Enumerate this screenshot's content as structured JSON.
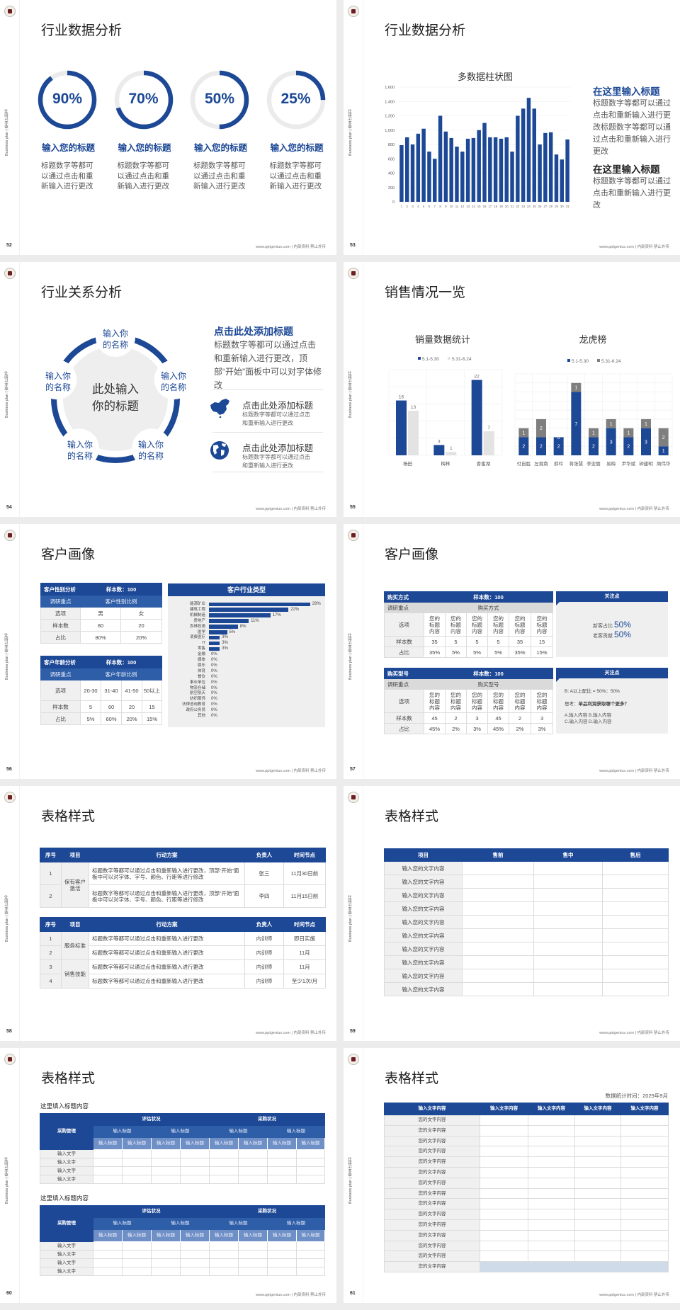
{
  "common": {
    "sidebar": "Business plan | 商业计划书",
    "footer": "www.pptgenius.com | 内部资料 禁止外传"
  },
  "colors": {
    "primary": "#1c4896",
    "secondary": "#2f5ea8",
    "light_gray": "#ebebeb",
    "gray_series": "#7f7f7f",
    "light_series": "#e3e3e3"
  },
  "chart_data": [
    {
      "type": "bar",
      "title": "多数据柱状图",
      "categories": [
        "1",
        "2",
        "3",
        "4",
        "5",
        "6",
        "7",
        "8",
        "9",
        "10",
        "11",
        "12",
        "13",
        "14",
        "15",
        "16",
        "17",
        "18",
        "19",
        "20",
        "21",
        "22",
        "23",
        "24",
        "25",
        "26",
        "27",
        "28",
        "29",
        "30",
        "31"
      ],
      "values": [
        790,
        900,
        800,
        950,
        1020,
        700,
        600,
        1200,
        980,
        890,
        770,
        700,
        880,
        890,
        1000,
        1100,
        900,
        900,
        880,
        900,
        700,
        1200,
        1300,
        1450,
        1300,
        800,
        960,
        970,
        660,
        590,
        870
      ],
      "ylim": [
        0,
        1600
      ],
      "yticks": [
        "0",
        "200",
        "400",
        "600",
        "800",
        "1,000",
        "1,200",
        "1,400",
        "1,600"
      ],
      "grid": true
    },
    {
      "type": "bar",
      "title": "销量数据统计",
      "categories": [
        "杨田",
        "梅林",
        "香蜜湖"
      ],
      "series": [
        {
          "name": "5.1-5.30",
          "values": [
            16,
            3,
            22
          ]
        },
        {
          "name": "5.31-6.24",
          "values": [
            13,
            1,
            7
          ]
        }
      ],
      "ylim": [
        0,
        25
      ],
      "legend": "top",
      "grid": true
    },
    {
      "type": "bar",
      "stacked": true,
      "title": "龙虎榜",
      "categories": [
        "付自胜",
        "左湘南",
        "薛玲",
        "蒋张慧",
        "李亚丽",
        "易梅",
        "尹华斌",
        "钟建明",
        "周伟华"
      ],
      "series": [
        {
          "name": "5.1-5.30",
          "values": [
            2,
            2,
            2,
            7,
            2,
            3,
            2,
            3,
            1
          ]
        },
        {
          "name": "5.31-6.24",
          "values": [
            1,
            2,
            0,
            1,
            1,
            1,
            1,
            1,
            2
          ]
        }
      ],
      "ylim": [
        0,
        9
      ],
      "legend": "top",
      "grid": true
    },
    {
      "type": "bar",
      "orientation": "horizontal",
      "title": "客户行业类型",
      "categories": [
        "能源矿业",
        "建筑工程",
        "机械制造",
        "房地产",
        "农林牧渔",
        "医学",
        "消费医疗",
        "IT",
        "零售",
        "金融",
        "媒体",
        "娱乐",
        "体育",
        "餐饮",
        "事业单位",
        "物流仓储",
        "航空航天",
        "纺织服饰",
        "法律咨询教育",
        "政府公务员",
        "其他"
      ],
      "values": [
        28,
        22,
        17,
        11,
        8,
        5,
        3,
        3,
        3,
        0,
        0,
        0,
        0,
        0,
        0,
        0,
        0,
        0,
        0,
        0,
        0
      ],
      "unit": "%"
    }
  ],
  "s52": {
    "page": "52",
    "title": "行业数据分析",
    "items": [
      {
        "value": "90%",
        "percent": 90,
        "label": "输入您的标题",
        "desc": "标题数字等都可以通过点击和重新输入进行更改"
      },
      {
        "value": "70%",
        "percent": 70,
        "label": "输入您的标题",
        "desc": "标题数字等都可以通过点击和重新输入进行更改"
      },
      {
        "value": "50%",
        "percent": 50,
        "label": "输入您的标题",
        "desc": "标题数字等都可以通过点击和重新输入进行更改"
      },
      {
        "value": "25%",
        "percent": 25,
        "label": "输入您的标题",
        "desc": "标题数字等都可以通过点击和重新输入进行更改"
      }
    ]
  },
  "s53": {
    "page": "53",
    "title": "行业数据分析",
    "blocks": [
      {
        "heading": "在这里输入标题",
        "text": "标题数字等都可以通过点击和重新输入进行更改标题数字等都可以通过点击和重新输入进行更改"
      },
      {
        "heading": "在这里输入标题",
        "text": "标题数字等都可以通过点击和重新输入进行更改"
      }
    ]
  },
  "s54": {
    "page": "54",
    "title": "行业关系分析",
    "center": "此处输入你的标题",
    "nodes": [
      "输入你的名称",
      "输入你的名称",
      "输入你的名称",
      "输入你的名称",
      "输入你的名称"
    ],
    "heading": "点击此处添加标题",
    "paragraph": "标题数字等都可以通过点击和重新输入进行更改，顶部“开始”面板中可以对字体修改",
    "items": [
      {
        "icon": "china-map-icon",
        "title": "点击此处添加标题",
        "desc": "标题数字等都可以通过点击和重新输入进行更改"
      },
      {
        "icon": "globe-icon",
        "title": "点击此处添加标题",
        "desc": "标题数字等都可以通过点击和重新输入进行更改"
      }
    ]
  },
  "s55": {
    "page": "55",
    "title": "销售情况一览"
  },
  "s56": {
    "page": "56",
    "title": "客户画像",
    "gender": {
      "title": "客户性别分析",
      "sample": "样本数：100",
      "focus_label": "调研重点",
      "focus": "客户性别比例",
      "rows": [
        [
          "选项",
          "男",
          "女"
        ],
        [
          "样本数",
          "80",
          "20"
        ],
        [
          "占比",
          "80%",
          "20%"
        ]
      ]
    },
    "age": {
      "title": "客户年龄分析",
      "sample": "样本数：100",
      "focus_label": "调研重点",
      "focus": "客户年龄比例",
      "rows": [
        [
          "选项",
          "20-30",
          "31-40",
          "41-50",
          "50以上"
        ],
        [
          "样本数",
          "5",
          "60",
          "20",
          "15"
        ],
        [
          "占比",
          "5%",
          "60%",
          "20%",
          "15%"
        ]
      ]
    }
  },
  "s57": {
    "page": "57",
    "title": "客户画像",
    "method": {
      "title": "购买方式",
      "sample": "样本数：100",
      "focus_label": "调研重点",
      "focus": "购买方式",
      "rows": [
        [
          "选项",
          "您的标题内容",
          "您的标题内容",
          "您的标题内容",
          "您的标题内容",
          "您的标题内容",
          "您的标题内容"
        ],
        [
          "样本数",
          "35",
          "5",
          "5",
          "5",
          "35",
          "15"
        ],
        [
          "占比",
          "35%",
          "5%",
          "5%",
          "5%",
          "35%",
          "15%"
        ]
      ]
    },
    "model": {
      "title": "购买型号",
      "sample": "样本数：100",
      "focus_label": "调研重点",
      "focus": "购买型号",
      "rows": [
        [
          "选项",
          "您的标题内容",
          "您的标题内容",
          "您的标题内容",
          "您的标题内容",
          "您的标题内容",
          "您的标题内容"
        ],
        [
          "样本数",
          "45",
          "2",
          "3",
          "45",
          "2",
          "3"
        ],
        [
          "占比",
          "45%",
          "2%",
          "3%",
          "45%",
          "2%",
          "3%"
        ]
      ]
    },
    "panel1": {
      "title": "关注点",
      "lines": [
        {
          "label": "新客占比",
          "value": "50%"
        },
        {
          "label": "老客贡献",
          "value": "50%"
        }
      ]
    },
    "panel2": {
      "title": "关注点",
      "ratio": "B: A以上配比 = 50%：50%",
      "question_prefix": "思考：",
      "question": "单品利润获取哪个更多？",
      "options": [
        "A.输入内容",
        "B.输入内容",
        "C.输入内容",
        "D.输入内容"
      ]
    }
  },
  "s58": {
    "page": "58",
    "title": "表格样式",
    "headers": [
      "序号",
      "项目",
      "行动方案",
      "负责人",
      "时间节点"
    ],
    "table1": {
      "groups": [
        {
          "project": "保有客户激活",
          "span": 2
        }
      ],
      "rows": [
        {
          "no": "1",
          "plan": "标题数字等都可以通过点击和重新输入进行更改，顶部“开始”面板中可以对字体、字号、颜色、行距等进行修改",
          "owner": "张三",
          "time": "11月30日前"
        },
        {
          "no": "2",
          "plan": "标题数字等都可以通过点击和重新输入进行更改，顶部“开始”面板中可以对字体、字号、颜色、行距等进行修改",
          "owner": "李四",
          "time": "11月15日前"
        }
      ]
    },
    "table2": {
      "groups": [
        {
          "project": "服务标准",
          "span": 2
        },
        {
          "project": "销售技能",
          "span": 2
        }
      ],
      "rows": [
        {
          "no": "1",
          "plan": "标题数字等都可以通过点击和重新输入进行更改",
          "owner": "内训师",
          "time": "即日实施"
        },
        {
          "no": "2",
          "plan": "标题数字等都可以通过点击和重新输入进行更改",
          "owner": "内训师",
          "time": "11月"
        },
        {
          "no": "3",
          "plan": "标题数字等都可以通过点击和重新输入进行更改",
          "owner": "内训师",
          "time": "11月"
        },
        {
          "no": "4",
          "plan": "标题数字等都可以通过点击和重新输入进行更改",
          "owner": "内训师",
          "time": "至少1次/月"
        }
      ]
    }
  },
  "s59": {
    "page": "59",
    "title": "表格样式",
    "headers": [
      "项目",
      "售前",
      "售中",
      "售后"
    ],
    "rows": [
      "输入您的文字内容",
      "输入您的文字内容",
      "输入您的文字内容",
      "输入您的文字内容",
      "输入您的文字内容",
      "输入您的文字内容",
      "输入您的文字内容",
      "输入您的文字内容",
      "输入您的文字内容",
      "输入您的文字内容"
    ]
  },
  "s60": {
    "page": "60",
    "title": "表格样式",
    "tables": [
      {
        "subtitle": "这里填入标题内容",
        "corner": "采购管理",
        "groups": [
          "评估状况",
          "采购状况"
        ],
        "sub": [
          "输入标题",
          "输入标题",
          "输入标题",
          "输入标题"
        ],
        "leaf": [
          "输入标题",
          "输入标题",
          "输入标题",
          "输入标题",
          "输入标题",
          "输入标题",
          "输入标题",
          "输入标题"
        ],
        "rows": [
          "输入文字",
          "输入文字",
          "输入文字",
          "输入文字"
        ]
      },
      {
        "subtitle": "这里填入标题内容",
        "corner": "采购管理",
        "groups": [
          "评估状况",
          "采购状况"
        ],
        "sub": [
          "输入标题",
          "输入标题",
          "输入标题",
          "输入标题"
        ],
        "leaf": [
          "输入标题",
          "输入标题",
          "输入标题",
          "输入标题",
          "输入标题",
          "输入标题",
          "输入标题",
          "输入标题"
        ],
        "rows": [
          "输入文字",
          "输入文字",
          "输入文字",
          "输入文字"
        ]
      }
    ]
  },
  "s61": {
    "page": "61",
    "title": "表格样式",
    "date": "数据统计时间：2029年9月",
    "headers": [
      "输入文字内容",
      "输入文字内容",
      "输入文字内容",
      "输入文字内容",
      "输入文字内容"
    ],
    "rows": [
      "您的文字内容",
      "您的文字内容",
      "您的文字内容",
      "您的文字内容",
      "您的文字内容",
      "您的文字内容",
      "您的文字内容",
      "您的文字内容",
      "您的文字内容",
      "您的文字内容",
      "您的文字内容",
      "您的文字内容",
      "您的文字内容",
      "您的文字内容",
      "您的文字内容"
    ]
  }
}
